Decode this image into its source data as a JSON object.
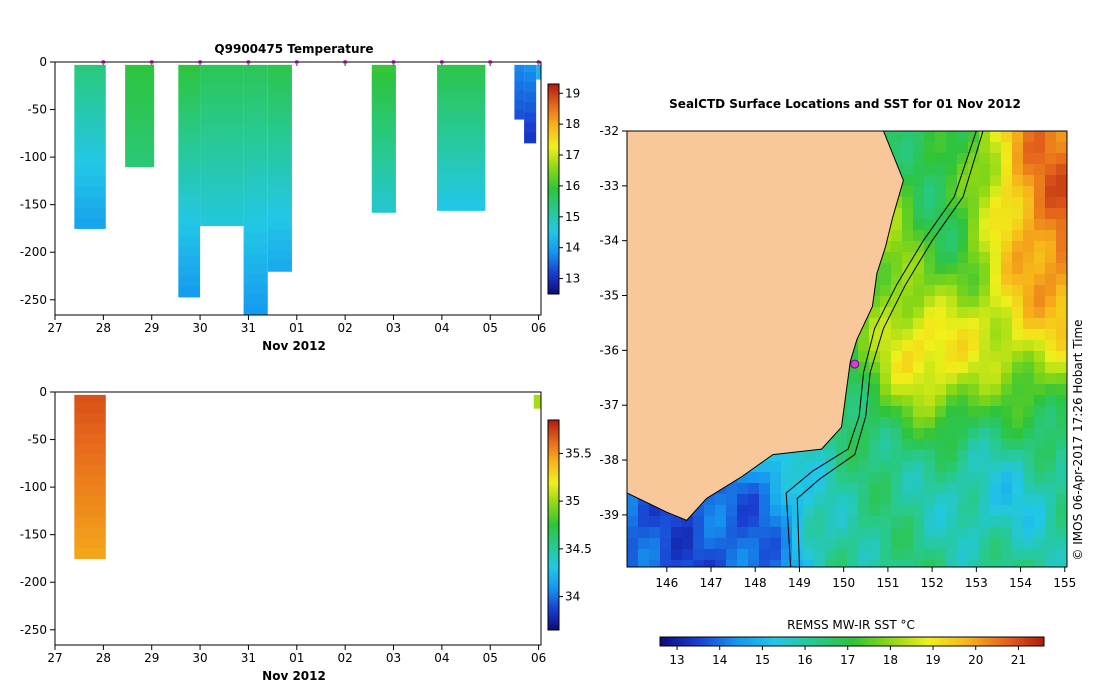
{
  "colors": {
    "land": "#f9c89a",
    "marker": "#cc44cc",
    "coast": "#000000",
    "scale_stops": [
      "#0b0b7a",
      "#1a3fd1",
      "#1597f0",
      "#22c7e6",
      "#28c98f",
      "#2ec43a",
      "#8cd815",
      "#f0f01a",
      "#f7b51a",
      "#e6661c",
      "#b11a0e"
    ]
  },
  "chart_data": [
    {
      "id": "temperature_profiles",
      "type": "heatmap",
      "title": "Q9900475  Temperature",
      "xlabel": "Nov 2012",
      "ylabel": "",
      "xlim": [
        27,
        37.05
      ],
      "ylim": [
        -266,
        0
      ],
      "x_ticks": [
        27,
        28,
        29,
        30,
        31,
        32,
        33,
        34,
        35,
        36,
        37
      ],
      "x_tick_labels": [
        "27",
        "28",
        "29",
        "30",
        "31",
        "01",
        "02",
        "03",
        "04",
        "05",
        "06"
      ],
      "y_ticks": [
        0,
        -50,
        -100,
        -150,
        -200,
        -250
      ],
      "y_tick_labels": [
        "0",
        "-50",
        "-100",
        "-150",
        "-200",
        "-250"
      ],
      "profile_markers_x": [
        28,
        29,
        30,
        31,
        32,
        33,
        34,
        35,
        36,
        37
      ],
      "colorbar": {
        "range": [
          12.5,
          19.3
        ],
        "ticks": [
          13,
          14,
          15,
          16,
          17,
          18,
          19
        ],
        "tick_labels": [
          "13",
          "14",
          "15",
          "16",
          "17",
          "18",
          "19"
        ]
      },
      "profiles": [
        {
          "x0": 27.4,
          "x1": 28.05,
          "depth": 175,
          "surface": 15.4,
          "bottom": 14.0
        },
        {
          "x0": 28.45,
          "x1": 29.05,
          "depth": 110,
          "surface": 15.9,
          "bottom": 15.4
        },
        {
          "x0": 29.55,
          "x1": 30.0,
          "depth": 247,
          "surface": 15.9,
          "bottom": 13.9
        },
        {
          "x0": 30.0,
          "x1": 30.9,
          "depth": 172,
          "surface": 15.7,
          "bottom": 14.6
        },
        {
          "x0": 30.9,
          "x1": 31.4,
          "depth": 266,
          "surface": 15.7,
          "bottom": 13.9
        },
        {
          "x0": 31.4,
          "x1": 31.9,
          "depth": 220,
          "surface": 15.8,
          "bottom": 14.1
        },
        {
          "x0": 33.55,
          "x1": 34.05,
          "depth": 158,
          "surface": 16.0,
          "bottom": 14.7
        },
        {
          "x0": 34.9,
          "x1": 35.9,
          "depth": 156,
          "surface": 15.8,
          "bottom": 14.5
        },
        {
          "x0": 36.5,
          "x1": 36.7,
          "depth": 60,
          "surface": 13.8,
          "bottom": 13.3
        },
        {
          "x0": 36.7,
          "x1": 36.95,
          "depth": 85,
          "surface": 13.9,
          "bottom": 13.0
        },
        {
          "x0": 36.95,
          "x1": 37.05,
          "depth": 18,
          "surface": 14.2,
          "bottom": 14.2
        }
      ]
    },
    {
      "id": "salinity_profiles",
      "type": "heatmap",
      "title": "",
      "xlabel": "Nov 2012",
      "ylabel": "",
      "xlim": [
        27,
        37.05
      ],
      "ylim": [
        -266,
        0
      ],
      "x_ticks": [
        27,
        28,
        29,
        30,
        31,
        32,
        33,
        34,
        35,
        36,
        37
      ],
      "x_tick_labels": [
        "27",
        "28",
        "29",
        "30",
        "31",
        "01",
        "02",
        "03",
        "04",
        "05",
        "06"
      ],
      "y_ticks": [
        0,
        -50,
        -100,
        -150,
        -200,
        -250
      ],
      "y_tick_labels": [
        "0",
        "-50",
        "-100",
        "-150",
        "-200",
        "-250"
      ],
      "colorbar": {
        "range": [
          33.65,
          35.85
        ],
        "ticks": [
          34,
          34.5,
          35,
          35.5
        ],
        "tick_labels": [
          "34",
          "34.5",
          "35",
          "35.5"
        ]
      },
      "profiles": [
        {
          "x0": 27.4,
          "x1": 28.05,
          "depth": 175,
          "surface": 35.7,
          "bottom": 35.45
        },
        {
          "x0": 36.9,
          "x1": 37.05,
          "depth": 17,
          "surface": 35.02,
          "bottom": 35.02
        }
      ]
    },
    {
      "id": "sst_map",
      "type": "heatmap",
      "title": "SealCTD Surface Locations and SST for 01 Nov 2012",
      "xlabel": "",
      "ylabel": "",
      "xlim": [
        145.1,
        155.05
      ],
      "ylim": [
        -39.95,
        -32.0
      ],
      "x_ticks": [
        146,
        147,
        148,
        149,
        150,
        151,
        152,
        153,
        154,
        155
      ],
      "x_tick_labels": [
        "146",
        "147",
        "148",
        "149",
        "150",
        "151",
        "152",
        "153",
        "154",
        "155"
      ],
      "y_ticks": [
        -32,
        -33,
        -34,
        -35,
        -36,
        -37,
        -38,
        -39
      ],
      "y_tick_labels": [
        "-32",
        "-33",
        "-34",
        "-35",
        "-36",
        "-37",
        "-38",
        "-39"
      ],
      "colorbar": {
        "label": "REMSS MW-IR SST °C",
        "range": [
          12.6,
          21.6
        ],
        "ticks": [
          13,
          14,
          15,
          16,
          17,
          18,
          19,
          20,
          21
        ],
        "tick_labels": [
          "13",
          "14",
          "15",
          "16",
          "17",
          "18",
          "19",
          "20",
          "21"
        ]
      },
      "seal_locations": [
        {
          "lon": 150.25,
          "lat": -36.25
        }
      ],
      "credit": "© IMOS 06-Apr-2017 17:26 Hobart Time"
    }
  ]
}
